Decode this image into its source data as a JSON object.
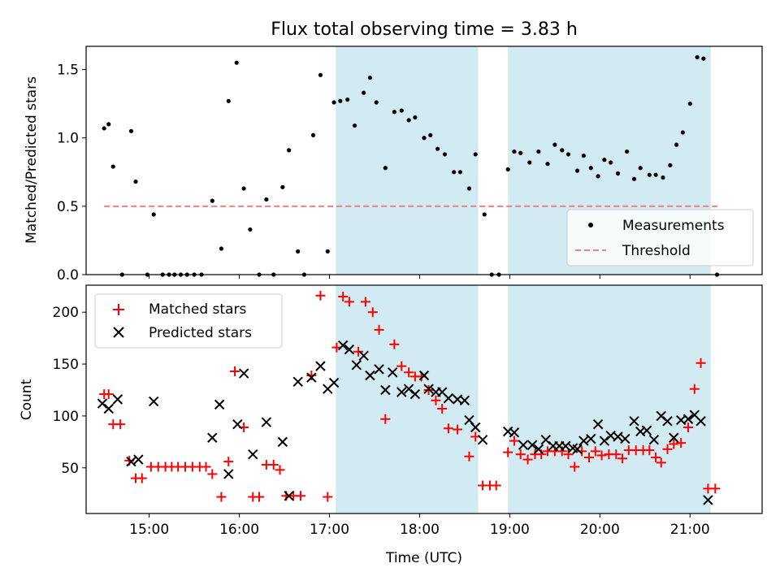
{
  "chart_data": {
    "title": "Flux total observing time = 3.83 h",
    "xlabel": "Time (UTC)",
    "x_unit": "hours UTC",
    "xlim": [
      14.3,
      21.8
    ],
    "x_ticks": [
      {
        "value": 15,
        "label": "15:00"
      },
      {
        "value": 16,
        "label": "16:00"
      },
      {
        "value": 17,
        "label": "17:00"
      },
      {
        "value": 18,
        "label": "18:00"
      },
      {
        "value": 19,
        "label": "19:00"
      },
      {
        "value": 20,
        "label": "20:00"
      },
      {
        "value": 21,
        "label": "21:00"
      }
    ],
    "shaded_intervals": [
      [
        17.07,
        18.65
      ],
      [
        18.98,
        21.23
      ]
    ],
    "shade_color": "#add8e6",
    "top": {
      "type": "scatter",
      "ylabel": "Matched/Predicted stars",
      "ylim": [
        0,
        1.67
      ],
      "y_ticks": [
        "0.0",
        "0.5",
        "1.0",
        "1.5"
      ],
      "legend_position": "lower-right",
      "threshold": {
        "name": "Threshold",
        "value": 0.5,
        "x_range": [
          14.5,
          21.32
        ],
        "color": "#f08080"
      },
      "series": [
        {
          "name": "Measurements",
          "color": "#000000",
          "points": [
            [
              14.5,
              1.07
            ],
            [
              14.55,
              1.1
            ],
            [
              14.6,
              0.79
            ],
            [
              14.7,
              0.0
            ],
            [
              14.8,
              1.05
            ],
            [
              14.85,
              0.68
            ],
            [
              14.98,
              0.0
            ],
            [
              15.05,
              0.44
            ],
            [
              15.15,
              0.0
            ],
            [
              15.22,
              0.0
            ],
            [
              15.28,
              0.0
            ],
            [
              15.35,
              0.0
            ],
            [
              15.42,
              0.0
            ],
            [
              15.5,
              0.0
            ],
            [
              15.58,
              0.0
            ],
            [
              15.7,
              0.54
            ],
            [
              15.8,
              0.19
            ],
            [
              15.88,
              1.27
            ],
            [
              15.97,
              1.55
            ],
            [
              16.05,
              0.63
            ],
            [
              16.12,
              0.33
            ],
            [
              16.22,
              0.0
            ],
            [
              16.3,
              0.55
            ],
            [
              16.38,
              0.0
            ],
            [
              16.48,
              0.64
            ],
            [
              16.55,
              0.91
            ],
            [
              16.65,
              0.17
            ],
            [
              16.72,
              0.0
            ],
            [
              16.82,
              1.02
            ],
            [
              16.9,
              1.46
            ],
            [
              16.98,
              0.17
            ],
            [
              17.05,
              1.26
            ],
            [
              17.12,
              1.27
            ],
            [
              17.2,
              1.28
            ],
            [
              17.28,
              1.09
            ],
            [
              17.38,
              1.33
            ],
            [
              17.45,
              1.44
            ],
            [
              17.52,
              1.26
            ],
            [
              17.62,
              0.78
            ],
            [
              17.72,
              1.19
            ],
            [
              17.8,
              1.2
            ],
            [
              17.88,
              1.13
            ],
            [
              17.95,
              1.15
            ],
            [
              18.05,
              1.0
            ],
            [
              18.12,
              1.02
            ],
            [
              18.2,
              0.92
            ],
            [
              18.28,
              0.88
            ],
            [
              18.38,
              0.75
            ],
            [
              18.45,
              0.75
            ],
            [
              18.55,
              0.63
            ],
            [
              18.62,
              0.88
            ],
            [
              18.72,
              0.44
            ],
            [
              18.8,
              0.0
            ],
            [
              18.88,
              0.0
            ],
            [
              18.98,
              0.77
            ],
            [
              19.05,
              0.9
            ],
            [
              19.12,
              0.89
            ],
            [
              19.22,
              0.82
            ],
            [
              19.32,
              0.9
            ],
            [
              19.42,
              0.81
            ],
            [
              19.5,
              0.95
            ],
            [
              19.58,
              0.91
            ],
            [
              19.65,
              0.88
            ],
            [
              19.75,
              0.76
            ],
            [
              19.82,
              0.87
            ],
            [
              19.9,
              0.78
            ],
            [
              19.98,
              0.72
            ],
            [
              20.05,
              0.84
            ],
            [
              20.12,
              0.82
            ],
            [
              20.2,
              0.74
            ],
            [
              20.3,
              0.9
            ],
            [
              20.38,
              0.7
            ],
            [
              20.45,
              0.78
            ],
            [
              20.55,
              0.73
            ],
            [
              20.62,
              0.73
            ],
            [
              20.7,
              0.71
            ],
            [
              20.78,
              0.8
            ],
            [
              20.85,
              0.95
            ],
            [
              20.92,
              1.04
            ],
            [
              21.0,
              1.25
            ],
            [
              21.08,
              1.59
            ],
            [
              21.15,
              1.58
            ],
            [
              21.3,
              0.0
            ]
          ]
        }
      ]
    },
    "bottom": {
      "type": "scatter",
      "ylabel": "Count",
      "ylim": [
        6,
        226
      ],
      "y_ticks": [
        50,
        100,
        150,
        200
      ],
      "legend_position": "upper-left",
      "series": [
        {
          "name": "Matched stars",
          "marker": "+",
          "color": "#ff0000",
          "points": [
            [
              14.5,
              121
            ],
            [
              14.55,
              121
            ],
            [
              14.6,
              92
            ],
            [
              14.68,
              92
            ],
            [
              14.78,
              57
            ],
            [
              14.85,
              40
            ],
            [
              14.92,
              40
            ],
            [
              15.02,
              51
            ],
            [
              15.1,
              51
            ],
            [
              15.18,
              51
            ],
            [
              15.25,
              51
            ],
            [
              15.32,
              51
            ],
            [
              15.4,
              51
            ],
            [
              15.48,
              51
            ],
            [
              15.56,
              51
            ],
            [
              15.63,
              51
            ],
            [
              15.7,
              44
            ],
            [
              15.8,
              22
            ],
            [
              15.88,
              56
            ],
            [
              15.95,
              143
            ],
            [
              16.05,
              89
            ],
            [
              16.15,
              22
            ],
            [
              16.22,
              22
            ],
            [
              16.3,
              53
            ],
            [
              16.38,
              53
            ],
            [
              16.45,
              48
            ],
            [
              16.52,
              23
            ],
            [
              16.6,
              23
            ],
            [
              16.68,
              23
            ],
            [
              16.8,
              139
            ],
            [
              16.9,
              216
            ],
            [
              16.98,
              22
            ],
            [
              17.08,
              166
            ],
            [
              17.15,
              215
            ],
            [
              17.22,
              210
            ],
            [
              17.32,
              162
            ],
            [
              17.4,
              210
            ],
            [
              17.48,
              200
            ],
            [
              17.55,
              183
            ],
            [
              17.62,
              97
            ],
            [
              17.72,
              169
            ],
            [
              17.8,
              148
            ],
            [
              17.88,
              142
            ],
            [
              17.95,
              138
            ],
            [
              18.02,
              138
            ],
            [
              18.1,
              125
            ],
            [
              18.18,
              115
            ],
            [
              18.25,
              107
            ],
            [
              18.32,
              88
            ],
            [
              18.42,
              87
            ],
            [
              18.55,
              61
            ],
            [
              18.62,
              80
            ],
            [
              18.7,
              33
            ],
            [
              18.78,
              33
            ],
            [
              18.85,
              33
            ],
            [
              18.98,
              65
            ],
            [
              19.05,
              76
            ],
            [
              19.12,
              63
            ],
            [
              19.2,
              58
            ],
            [
              19.28,
              63
            ],
            [
              19.35,
              63
            ],
            [
              19.42,
              66
            ],
            [
              19.5,
              66
            ],
            [
              19.58,
              66
            ],
            [
              19.65,
              63
            ],
            [
              19.72,
              51
            ],
            [
              19.8,
              66
            ],
            [
              19.88,
              60
            ],
            [
              19.95,
              66
            ],
            [
              20.02,
              62
            ],
            [
              20.1,
              63
            ],
            [
              20.18,
              63
            ],
            [
              20.25,
              59
            ],
            [
              20.32,
              67
            ],
            [
              20.4,
              67
            ],
            [
              20.48,
              67
            ],
            [
              20.55,
              67
            ],
            [
              20.62,
              60
            ],
            [
              20.68,
              55
            ],
            [
              20.75,
              68
            ],
            [
              20.82,
              73
            ],
            [
              20.9,
              74
            ],
            [
              20.98,
              89
            ],
            [
              21.05,
              126
            ],
            [
              21.12,
              151
            ],
            [
              21.2,
              30
            ],
            [
              21.28,
              30
            ]
          ]
        },
        {
          "name": "Predicted stars",
          "marker": "x",
          "color": "#000000",
          "points": [
            [
              14.48,
              112
            ],
            [
              14.55,
              107
            ],
            [
              14.65,
              116
            ],
            [
              14.8,
              56
            ],
            [
              14.88,
              58
            ],
            [
              15.05,
              114
            ],
            [
              15.7,
              79
            ],
            [
              15.78,
              111
            ],
            [
              15.88,
              44
            ],
            [
              15.98,
              92
            ],
            [
              16.05,
              141
            ],
            [
              16.15,
              63
            ],
            [
              16.3,
              94
            ],
            [
              16.48,
              75
            ],
            [
              16.55,
              23
            ],
            [
              16.65,
              133
            ],
            [
              16.8,
              137
            ],
            [
              16.9,
              148
            ],
            [
              16.98,
              126
            ],
            [
              17.05,
              132
            ],
            [
              17.15,
              168
            ],
            [
              17.22,
              164
            ],
            [
              17.3,
              149
            ],
            [
              17.38,
              158
            ],
            [
              17.45,
              139
            ],
            [
              17.55,
              145
            ],
            [
              17.62,
              125
            ],
            [
              17.7,
              142
            ],
            [
              17.8,
              123
            ],
            [
              17.88,
              126
            ],
            [
              17.95,
              121
            ],
            [
              18.05,
              139
            ],
            [
              18.1,
              126
            ],
            [
              18.18,
              123
            ],
            [
              18.25,
              123
            ],
            [
              18.32,
              117
            ],
            [
              18.42,
              116
            ],
            [
              18.5,
              115
            ],
            [
              18.55,
              96
            ],
            [
              18.62,
              89
            ],
            [
              18.7,
              77
            ],
            [
              18.98,
              85
            ],
            [
              19.05,
              84
            ],
            [
              19.15,
              72
            ],
            [
              19.25,
              72
            ],
            [
              19.32,
              68
            ],
            [
              19.4,
              77
            ],
            [
              19.48,
              71
            ],
            [
              19.55,
              71
            ],
            [
              19.62,
              71
            ],
            [
              19.7,
              69
            ],
            [
              19.75,
              68
            ],
            [
              19.82,
              76
            ],
            [
              19.9,
              78
            ],
            [
              19.98,
              92
            ],
            [
              20.05,
              76
            ],
            [
              20.12,
              81
            ],
            [
              20.2,
              80
            ],
            [
              20.28,
              78
            ],
            [
              20.38,
              95
            ],
            [
              20.45,
              85
            ],
            [
              20.52,
              86
            ],
            [
              20.6,
              77
            ],
            [
              20.68,
              100
            ],
            [
              20.75,
              95
            ],
            [
              20.82,
              79
            ],
            [
              20.9,
              96
            ],
            [
              20.98,
              97
            ],
            [
              21.05,
              101
            ],
            [
              21.12,
              95
            ],
            [
              21.2,
              19
            ]
          ]
        }
      ]
    }
  }
}
